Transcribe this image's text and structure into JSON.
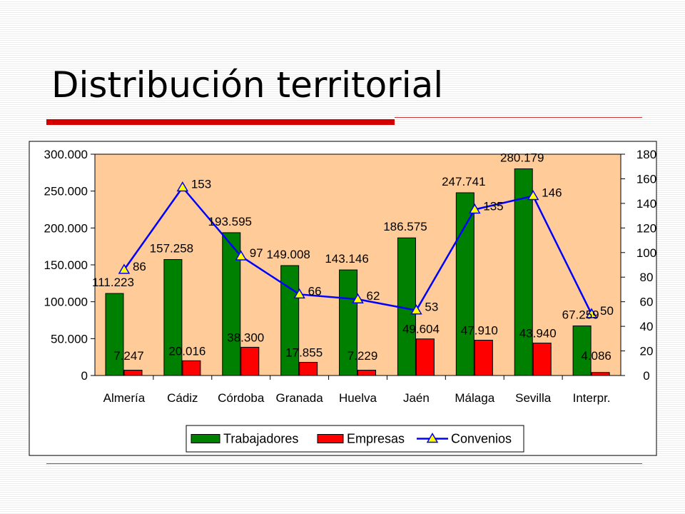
{
  "slide": {
    "title": "Distribución territorial",
    "accent_color": "#d40000",
    "rule_color": "#cc3333"
  },
  "chart_data": {
    "type": "bar",
    "categories": [
      "Almería",
      "Cádiz",
      "Córdoba",
      "Granada",
      "Huelva",
      "Jaén",
      "Málaga",
      "Sevilla",
      "Interpr."
    ],
    "series": [
      {
        "name": "Trabajadores",
        "kind": "bar",
        "axis": "left",
        "color": "#008000",
        "values": [
          111223,
          157258,
          193595,
          149008,
          143146,
          186575,
          247741,
          280179,
          67259
        ],
        "labels": [
          "111.223",
          "157.258",
          "193.595",
          "149.008",
          "143.146",
          "186.575",
          "247.741",
          "280.179",
          "67.259"
        ]
      },
      {
        "name": "Empresas",
        "kind": "bar",
        "axis": "left",
        "color": "#ff0000",
        "values": [
          7247,
          20016,
          38300,
          17855,
          7229,
          49604,
          47910,
          43940,
          4086
        ],
        "labels": [
          "7.247",
          "20.016",
          "38.300",
          "17.855",
          "7.229",
          "49.604",
          "47.910",
          "43.940",
          "4.086"
        ]
      },
      {
        "name": "Convenios",
        "kind": "line",
        "axis": "right",
        "color": "#0000ff",
        "marker_color": "#ffff00",
        "values": [
          86,
          153,
          97,
          66,
          62,
          53,
          135,
          146,
          50
        ],
        "labels": [
          "86",
          "153",
          "97",
          "66",
          "62",
          "53",
          "135",
          "146",
          "50"
        ]
      }
    ],
    "y_left": {
      "min": 0,
      "max": 300000,
      "step": 50000,
      "tick_labels": [
        "0",
        "50.000",
        "100.000",
        "150.000",
        "200.000",
        "250.000",
        "300.000"
      ]
    },
    "y_right": {
      "min": 0,
      "max": 180,
      "step": 20,
      "tick_labels": [
        "0",
        "20",
        "40",
        "60",
        "80",
        "100",
        "120",
        "140",
        "160",
        "180"
      ]
    },
    "plot_background": "#ffcc99",
    "grid": false,
    "legend_position": "bottom"
  }
}
